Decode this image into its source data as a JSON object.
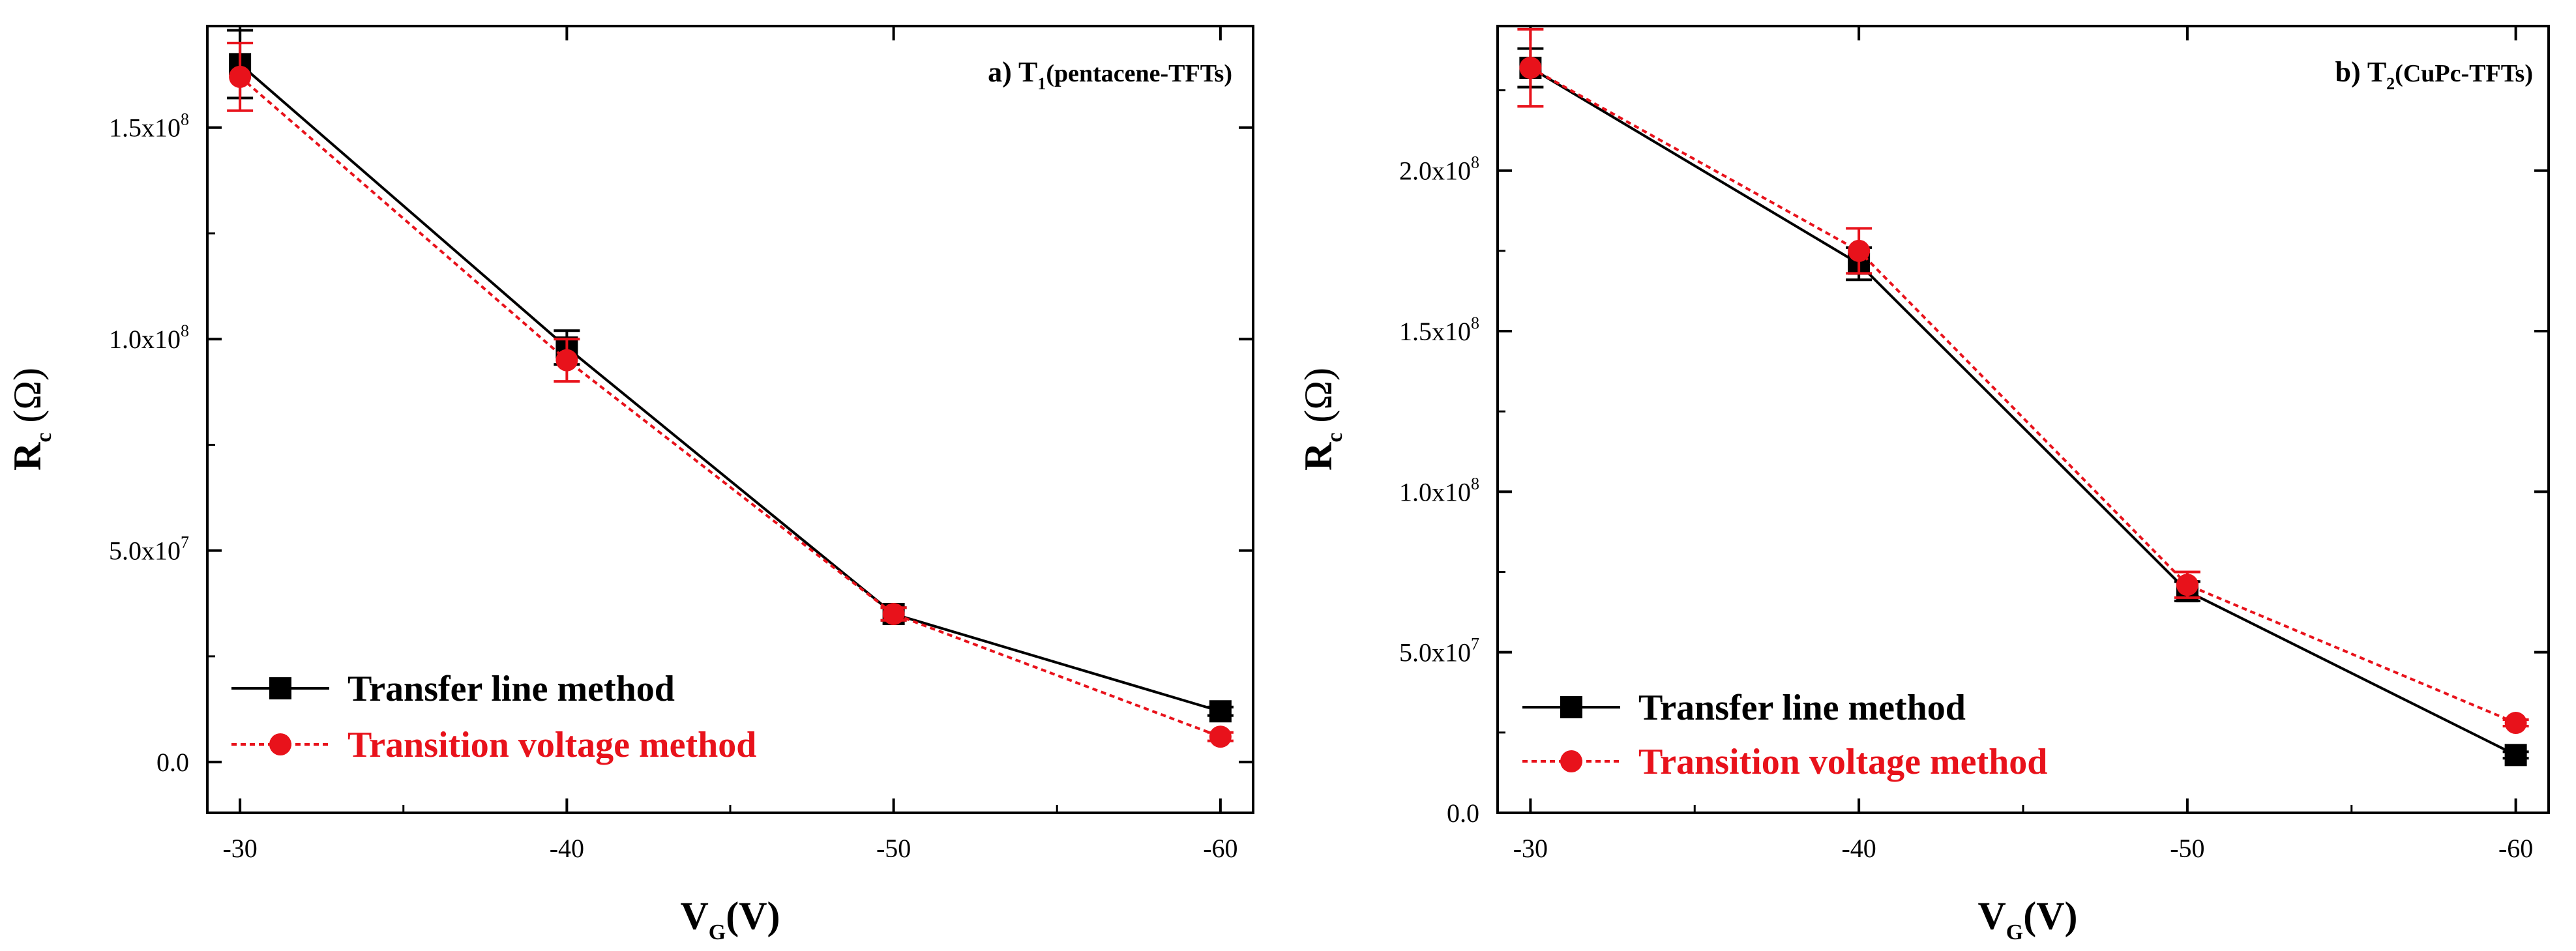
{
  "chart_data": [
    {
      "type": "line",
      "annotation": "a) T",
      "annotation_sub": "1",
      "annotation_tail": "(pentacene-TFTs)",
      "xlabel": "V",
      "xlabel_sub": "G",
      "xlabel_tail": "(V)",
      "ylabel": "R",
      "ylabel_sub": "c",
      "ylabel_tail": " (Ω)",
      "x": [
        -30,
        -40,
        -50,
        -60
      ],
      "x_tick_labels": [
        "-30",
        "-40",
        "-50",
        "-60"
      ],
      "xlim": [
        -29,
        -61
      ],
      "ylim": [
        -12000000,
        174000000
      ],
      "y_ticks": [
        {
          "value": 0,
          "mant": "0.0",
          "exp": ""
        },
        {
          "value": 50000000,
          "mant": "5.0x10",
          "exp": "7"
        },
        {
          "value": 100000000,
          "mant": "1.0x10",
          "exp": "8"
        },
        {
          "value": 150000000,
          "mant": "1.5x10",
          "exp": "8"
        }
      ],
      "legend_position": "bottom-left",
      "series": [
        {
          "name": "Transfer line method",
          "color": "#000000",
          "marker": "square",
          "line": "solid",
          "values": [
            165000000,
            98000000,
            35000000,
            12000000
          ],
          "errors": [
            8000000,
            4000000,
            1500000,
            1000000
          ]
        },
        {
          "name": "Transition voltage method",
          "color": "#e8121b",
          "marker": "circle",
          "line": "dotted",
          "values": [
            162000000,
            95000000,
            35000000,
            6000000
          ],
          "errors": [
            8000000,
            5000000,
            1500000,
            1000000
          ]
        }
      ]
    },
    {
      "type": "line",
      "annotation": "b) T",
      "annotation_sub": "2",
      "annotation_tail": "(CuPc-TFTs)",
      "xlabel": "V",
      "xlabel_sub": "G",
      "xlabel_tail": "(V)",
      "ylabel": "R",
      "ylabel_sub": "c",
      "ylabel_tail": " (Ω)",
      "x": [
        -30,
        -40,
        -50,
        -60
      ],
      "x_tick_labels": [
        "-30",
        "-40",
        "-50",
        "-60"
      ],
      "xlim": [
        -29,
        -61
      ],
      "ylim": [
        0,
        245000000
      ],
      "y_ticks": [
        {
          "value": 0,
          "mant": "0.0",
          "exp": ""
        },
        {
          "value": 50000000,
          "mant": "5.0x10",
          "exp": "7"
        },
        {
          "value": 100000000,
          "mant": "1.0x10",
          "exp": "8"
        },
        {
          "value": 150000000,
          "mant": "1.5x10",
          "exp": "8"
        },
        {
          "value": 200000000,
          "mant": "2.0x10",
          "exp": "8"
        }
      ],
      "legend_position": "bottom-left",
      "series": [
        {
          "name": "Transfer line method",
          "color": "#000000",
          "marker": "square",
          "line": "solid",
          "values": [
            232000000,
            171000000,
            69000000,
            18000000
          ],
          "errors": [
            6000000,
            5000000,
            3000000,
            1000000
          ]
        },
        {
          "name": "Transition voltage method",
          "color": "#e8121b",
          "marker": "circle",
          "line": "dotted",
          "values": [
            232000000,
            175000000,
            71000000,
            28000000
          ],
          "errors": [
            12000000,
            7000000,
            4000000,
            1000000
          ]
        }
      ]
    }
  ]
}
